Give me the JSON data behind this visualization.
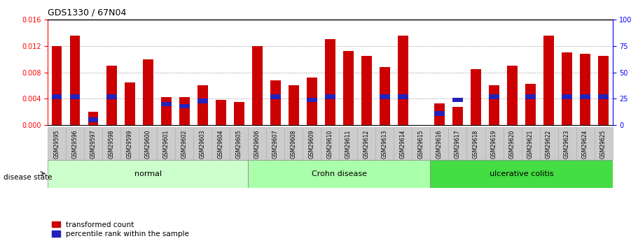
{
  "title": "GDS1330 / 67N04",
  "samples": [
    "GSM29595",
    "GSM29596",
    "GSM29597",
    "GSM29598",
    "GSM29599",
    "GSM29600",
    "GSM29601",
    "GSM29602",
    "GSM29603",
    "GSM29604",
    "GSM29605",
    "GSM29606",
    "GSM29607",
    "GSM29608",
    "GSM29609",
    "GSM29610",
    "GSM29611",
    "GSM29612",
    "GSM29613",
    "GSM29614",
    "GSM29615",
    "GSM29616",
    "GSM29617",
    "GSM29618",
    "GSM29619",
    "GSM29620",
    "GSM29621",
    "GSM29622",
    "GSM29623",
    "GSM29624",
    "GSM29625"
  ],
  "red_values": [
    0.0119,
    0.0135,
    0.002,
    0.009,
    0.0065,
    0.01,
    0.0043,
    0.0043,
    0.006,
    0.0038,
    0.0035,
    0.012,
    0.0068,
    0.006,
    0.0072,
    0.013,
    0.0112,
    0.0105,
    0.0088,
    0.0135,
    0.0,
    0.0033,
    0.0028,
    0.0085,
    0.006,
    0.009,
    0.0063,
    0.0135,
    0.011,
    0.0108,
    0.0105
  ],
  "blue_pct": [
    27,
    27,
    5,
    27,
    0,
    0,
    20,
    18,
    23,
    0,
    0,
    0,
    27,
    0,
    24,
    27,
    0,
    0,
    27,
    27,
    0,
    11,
    24,
    0,
    27,
    0,
    27,
    0,
    27,
    27,
    27
  ],
  "groups": [
    {
      "label": "normal",
      "start": 0,
      "end": 11,
      "color": "#ccffcc"
    },
    {
      "label": "Crohn disease",
      "start": 11,
      "end": 21,
      "color": "#aaffaa"
    },
    {
      "label": "ulcerative colitis",
      "start": 21,
      "end": 31,
      "color": "#44dd44"
    }
  ],
  "ylim_left": [
    0,
    0.016
  ],
  "ylim_right": [
    0,
    100
  ],
  "yticks_left": [
    0,
    0.004,
    0.008,
    0.012,
    0.016
  ],
  "yticks_right": [
    0,
    25,
    50,
    75,
    100
  ],
  "bar_color_red": "#cc0000",
  "bar_color_blue": "#2222bb",
  "bar_width": 0.55,
  "bg_color": "#ffffff"
}
